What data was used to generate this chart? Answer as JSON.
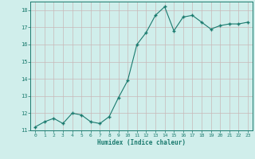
{
  "x": [
    0,
    1,
    2,
    3,
    4,
    5,
    6,
    7,
    8,
    9,
    10,
    11,
    12,
    13,
    14,
    15,
    16,
    17,
    18,
    19,
    20,
    21,
    22,
    23
  ],
  "y": [
    11.2,
    11.5,
    11.7,
    11.4,
    12.0,
    11.9,
    11.5,
    11.4,
    11.8,
    12.9,
    13.9,
    16.0,
    16.7,
    17.7,
    18.2,
    16.8,
    17.6,
    17.7,
    17.3,
    16.9,
    17.1,
    17.2,
    17.2,
    17.3
  ],
  "xlabel": "Humidex (Indice chaleur)",
  "ylim": [
    11,
    18.5
  ],
  "xlim": [
    -0.5,
    23.5
  ],
  "yticks": [
    11,
    12,
    13,
    14,
    15,
    16,
    17,
    18
  ],
  "xticks": [
    0,
    1,
    2,
    3,
    4,
    5,
    6,
    7,
    8,
    9,
    10,
    11,
    12,
    13,
    14,
    15,
    16,
    17,
    18,
    19,
    20,
    21,
    22,
    23
  ],
  "line_color": "#1a7a6e",
  "marker_color": "#1a7a6e",
  "bg_color": "#d0eeeb",
  "grid_color": "#c8b8b8",
  "marker": "+"
}
